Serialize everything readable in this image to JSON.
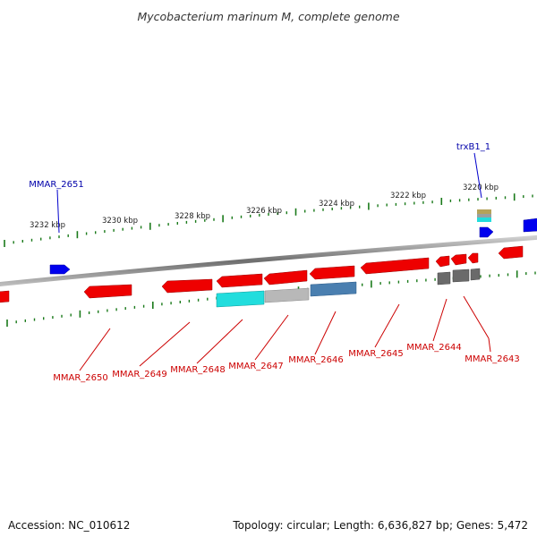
{
  "title": "Mycobacterium marinum M, complete genome",
  "footer": {
    "accession": "Accession: NC_010612",
    "topology": "Topology: circular; Length: 6,636,827 bp; Genes: 5,472"
  },
  "colors": {
    "backbone": "#888888",
    "tick": "#1a7a1a",
    "reverse_gene": "#ee0000",
    "forward_gene": "#0000ee",
    "label_red": "#cc0000",
    "label_blue": "#0000aa"
  },
  "ruler": {
    "unit": "kbp",
    "ticks": [
      "3232 kbp",
      "3230 kbp",
      "3228 kbp",
      "3226 kbp",
      "3224 kbp",
      "3222 kbp",
      "3220 kbp"
    ]
  },
  "genes": [
    {
      "label": "MMAR_2651",
      "strand": "forward",
      "color": "#0000ee"
    },
    {
      "label": "trxB1_1",
      "strand": "forward",
      "color": "#0000ee"
    },
    {
      "label": "MMAR_2650",
      "strand": "reverse",
      "color": "#ee0000"
    },
    {
      "label": "MMAR_2649",
      "strand": "reverse",
      "color": "#ee0000"
    },
    {
      "label": "MMAR_2648",
      "strand": "reverse",
      "color": "#ee0000"
    },
    {
      "label": "MMAR_2647",
      "strand": "reverse",
      "color": "#ee0000"
    },
    {
      "label": "MMAR_2646",
      "strand": "reverse",
      "color": "#ee0000"
    },
    {
      "label": "MMAR_2645",
      "strand": "reverse",
      "color": "#ee0000"
    },
    {
      "label": "MMAR_2644",
      "strand": "reverse",
      "color": "#ee0000"
    },
    {
      "label": "MMAR_2643",
      "strand": "reverse",
      "color": "#ee0000"
    }
  ],
  "domains": [
    "cyan",
    "silver",
    "steelblue",
    "gray",
    "olive"
  ]
}
